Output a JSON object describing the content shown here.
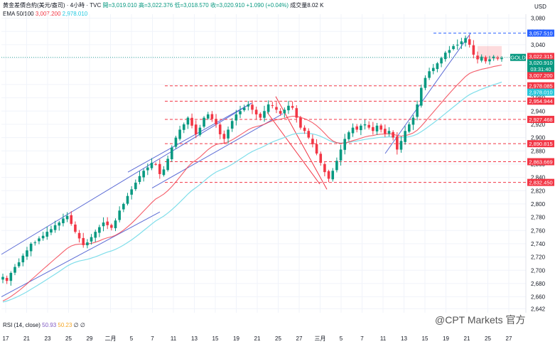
{
  "header": {
    "symbol": "黄金差價合約(美元/盎司) · 4小時 · TVC",
    "open": "開=3,019.010",
    "high": "高=3,022.376",
    "low": "低=3,018.570",
    "close": "收=3,020.910",
    "change": "+1.090 (+0.04%)",
    "volume": "成交量8.02 K"
  },
  "ema": {
    "label": "EMA 50/100",
    "v50": "3,007.200",
    "v100": "2,978.010"
  },
  "currency": "USD",
  "rsi": {
    "label": "RSI (14, close)",
    "v1": "50.93",
    "v2": "50.23",
    "s1": "∅",
    "s2": "∅"
  },
  "watermark": "@CPT Markets 官方",
  "colors": {
    "up": "#089981",
    "down": "#f23645",
    "ema50": "#f23645",
    "ema100": "#80deea",
    "trend_blue": "#5b6bd5",
    "trend_red": "#f23645",
    "level_red": "#f23645",
    "level_blue": "#2962ff"
  },
  "chart_data": {
    "type": "candlestick",
    "symbol_tag": "GOLD",
    "y_ticks": [
      2642,
      2660,
      2680,
      2700,
      2720,
      2740,
      2760,
      2780,
      2800,
      2820,
      2840,
      2860,
      2880,
      2900,
      2920,
      2940,
      2960,
      2980,
      3000,
      3020,
      3040,
      3060,
      3080
    ],
    "ylim": [
      2636,
      3086
    ],
    "x_ticks": [
      "17",
      "21",
      "23",
      "25",
      "29",
      "二月",
      "5",
      "7",
      "11",
      "13",
      "15",
      "19",
      "21",
      "25",
      "27",
      "三月",
      "5",
      "7",
      "11",
      "13",
      "15",
      "19",
      "21",
      "25",
      "27"
    ],
    "close_path": [
      2690,
      2684,
      2696,
      2705,
      2712,
      2722,
      2730,
      2740,
      2742,
      2748,
      2752,
      2758,
      2762,
      2768,
      2772,
      2778,
      2782,
      2770,
      2758,
      2748,
      2738,
      2742,
      2750,
      2758,
      2765,
      2772,
      2768,
      2764,
      2775,
      2790,
      2800,
      2812,
      2822,
      2832,
      2842,
      2850,
      2855,
      2862,
      2860,
      2845,
      2852,
      2868,
      2885,
      2900,
      2912,
      2920,
      2930,
      2918,
      2905,
      2915,
      2930,
      2935,
      2928,
      2920,
      2905,
      2898,
      2912,
      2925,
      2935,
      2940,
      2945,
      2950,
      2942,
      2935,
      2930,
      2940,
      2950,
      2948,
      2942,
      2936,
      2942,
      2948,
      2945,
      2930,
      2915,
      2910,
      2900,
      2890,
      2876,
      2862,
      2848,
      2838,
      2850,
      2865,
      2882,
      2898,
      2908,
      2915,
      2912,
      2918,
      2920,
      2915,
      2910,
      2918,
      2912,
      2906,
      2910,
      2900,
      2882,
      2895,
      2910,
      2920,
      2930,
      2950,
      2975,
      2990,
      3000,
      3005,
      3012,
      3020,
      3028,
      3032,
      3038,
      3040,
      3045,
      3050,
      3040,
      3025,
      3018,
      3022,
      3015,
      3018,
      3022,
      3019,
      3020
    ],
    "ema50_last": 3007.2,
    "ema100_last": 2978.01,
    "price_tags": [
      {
        "value": 3057.51,
        "label": "3,057.510",
        "color": "#2962ff"
      },
      {
        "value": 3022.315,
        "label": "3,022.315",
        "color": "#f23645"
      },
      {
        "value": 3020.91,
        "label": "3,020.910",
        "color": "#089981"
      },
      {
        "value": 3020.91,
        "label": "03:31:40",
        "color": "#089981",
        "offset": 1
      },
      {
        "value": 3007.2,
        "label": "3,007.200",
        "color": "#f23645"
      },
      {
        "value": 2978.085,
        "label": "2,978.085",
        "color": "#f23645"
      },
      {
        "value": 2978.01,
        "label": "2,978.010",
        "color": "#26c6da"
      },
      {
        "value": 2954.944,
        "label": "2,954.944",
        "color": "#f23645"
      },
      {
        "value": 2927.468,
        "label": "2,927.468",
        "color": "#f23645"
      },
      {
        "value": 2890.815,
        "label": "2,890.815",
        "color": "#f23645"
      },
      {
        "value": 2863.669,
        "label": "2,863.669",
        "color": "#f23645"
      },
      {
        "value": 2832.45,
        "label": "2,832.450",
        "color": "#f23645"
      }
    ],
    "levels": [
      2978.085,
      2954.944,
      2927.468,
      2890.815,
      2863.669,
      2832.45
    ],
    "top_level": 3057.51
  }
}
